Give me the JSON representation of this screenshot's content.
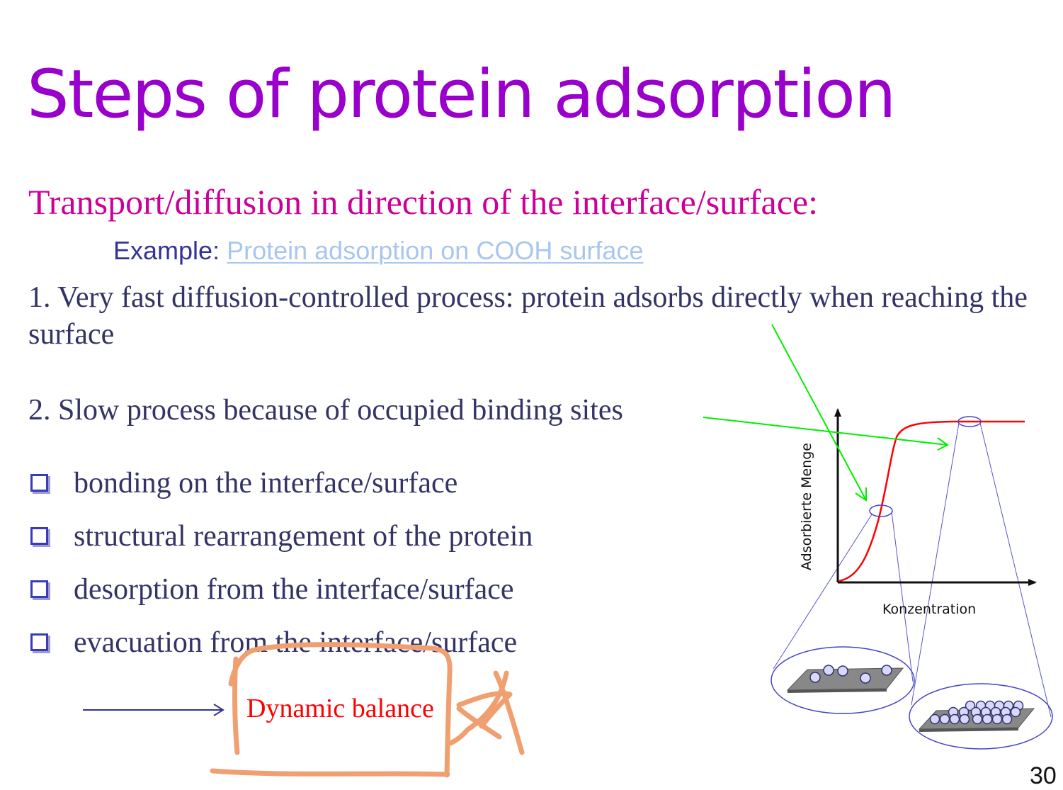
{
  "slide": {
    "title": "Steps of protein adsorption",
    "subheading": "Transport/diffusion in direction of the interface/surface:",
    "example": {
      "label": "Example:",
      "link_text": "Protein adsorption on COOH surface"
    },
    "step1": "1. Very fast diffusion-controlled process: protein adsorbs directly when reaching the surface",
    "step2": "2. Slow process because of occupied binding sites",
    "bullets": [
      "bonding on the interface/surface",
      "structural rearrangement of the protein",
      "desorption from the interface/surface",
      "evacuation from the interface/surface"
    ],
    "balance_label": "Dynamic balance",
    "page_number": "30"
  },
  "figure": {
    "y_axis_label": "Adsorbierte Menge",
    "x_axis_label": "Konzentration"
  },
  "colors": {
    "title": "#9900cc",
    "subheading": "#cc0099",
    "body_text": "#333366",
    "link": "#a9c6ee",
    "isotherm_curve": "#ff0000",
    "pointer_arrows": "#00ee00",
    "annotation_ink": "#f0a070",
    "magnifier_lines": "#5555cc"
  }
}
